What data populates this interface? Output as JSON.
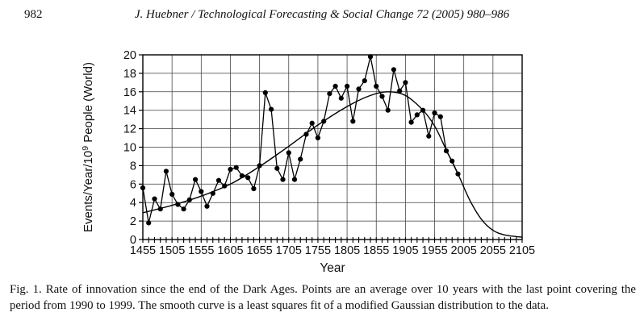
{
  "header": {
    "page_number": "982",
    "running_title": "J. Huebner / Technological Forecasting & Social Change 72 (2005) 980–986"
  },
  "figure": {
    "caption": "Fig. 1. Rate of innovation since the end of the Dark Ages. Points are an average over 10 years with the last point covering the period from 1990 to 1999. The smooth curve is a least squares fit of a modified Gaussian distribution to the data."
  },
  "chart_data": {
    "type": "scatter",
    "title": "",
    "xlabel": "Year",
    "ylabel": "Events/Year/10⁹ People (World)",
    "ylabel_parts": {
      "pre": "Events/Year/10",
      "sup": "9",
      "post": " People (World)"
    },
    "xlim": [
      1455,
      2105
    ],
    "ylim": [
      0,
      20
    ],
    "x_major_ticks": [
      1455,
      1505,
      1555,
      1605,
      1655,
      1705,
      1755,
      1805,
      1855,
      1905,
      1955,
      2005,
      2055,
      2105
    ],
    "x_minor_step": 10,
    "y_ticks": [
      0,
      2,
      4,
      6,
      8,
      10,
      12,
      14,
      16,
      18,
      20
    ],
    "grid": true,
    "legend": "none",
    "series": [
      {
        "name": "decade-average-points",
        "style": "points-with-line",
        "x": [
          1455,
          1465,
          1475,
          1485,
          1495,
          1505,
          1515,
          1525,
          1535,
          1545,
          1555,
          1565,
          1575,
          1585,
          1595,
          1605,
          1615,
          1625,
          1635,
          1645,
          1655,
          1665,
          1675,
          1685,
          1695,
          1705,
          1715,
          1725,
          1735,
          1745,
          1755,
          1765,
          1775,
          1785,
          1795,
          1805,
          1815,
          1825,
          1835,
          1845,
          1855,
          1865,
          1875,
          1885,
          1895,
          1905,
          1915,
          1925,
          1935,
          1945,
          1955,
          1965,
          1975,
          1985,
          1995
        ],
        "y": [
          5.6,
          1.8,
          4.4,
          3.3,
          7.4,
          4.9,
          3.8,
          3.3,
          4.3,
          6.5,
          5.2,
          3.6,
          5.0,
          6.4,
          5.8,
          7.6,
          7.8,
          6.9,
          6.7,
          5.5,
          8.0,
          15.9,
          14.1,
          7.7,
          6.5,
          9.4,
          6.5,
          8.7,
          11.4,
          12.6,
          11.0,
          12.8,
          15.8,
          16.6,
          15.3,
          16.6,
          12.8,
          16.3,
          17.2,
          19.8,
          16.6,
          15.5,
          14.0,
          18.4,
          16.1,
          17.0,
          12.7,
          13.5,
          14.0,
          11.2,
          13.7,
          13.3,
          9.6,
          8.5,
          7.1
        ]
      },
      {
        "name": "modified-gaussian-fit",
        "style": "smooth-curve",
        "x": [
          1455,
          1505,
          1555,
          1605,
          1655,
          1705,
          1755,
          1805,
          1845,
          1875,
          1905,
          1935,
          1955,
          1975,
          1995,
          2015,
          2035,
          2055,
          2075,
          2105
        ],
        "y": [
          2.9,
          3.7,
          4.7,
          6.0,
          7.9,
          10.1,
          12.4,
          14.4,
          15.6,
          16.0,
          15.6,
          14.0,
          12.3,
          9.7,
          7.1,
          4.3,
          2.2,
          1.0,
          0.5,
          0.25
        ]
      }
    ],
    "colors": {
      "foreground": "#000000",
      "background": "#ffffff",
      "grid": "#3d3d3d"
    }
  }
}
